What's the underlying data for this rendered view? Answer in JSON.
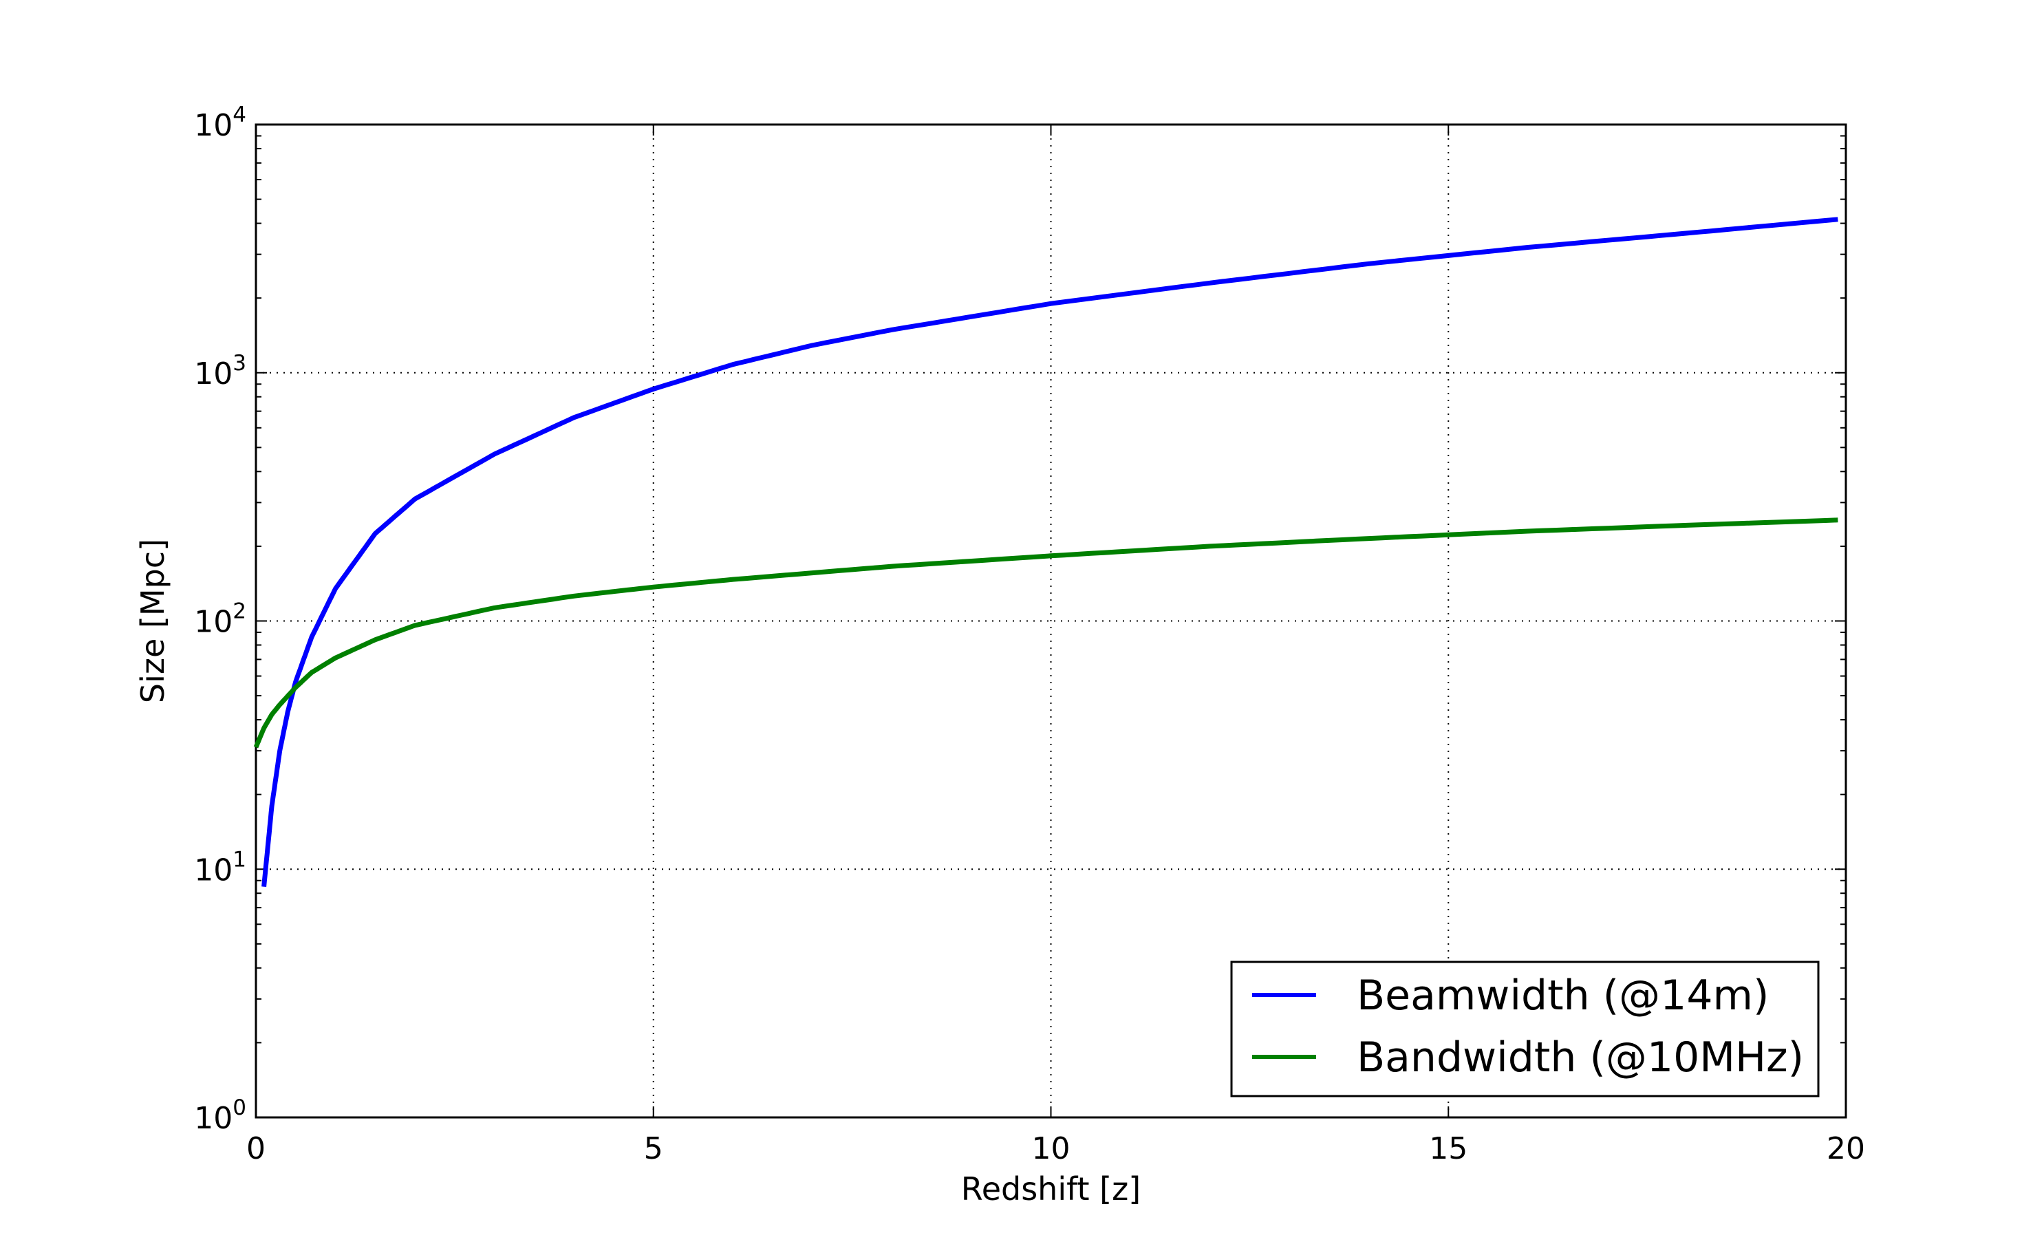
{
  "chart_data": {
    "type": "line",
    "title": "",
    "xlabel": "Redshift [z]",
    "ylabel": "Size [Mpc]",
    "xlim": [
      0,
      20
    ],
    "ylim": [
      1,
      10000
    ],
    "yscale": "log",
    "grid": true,
    "legend_position": "lower-right",
    "x_ticks": [
      "0",
      "5",
      "10",
      "15",
      "20"
    ],
    "y_ticks": [
      {
        "base": "10",
        "exp": "0"
      },
      {
        "base": "10",
        "exp": "1"
      },
      {
        "base": "10",
        "exp": "2"
      },
      {
        "base": "10",
        "exp": "3"
      },
      {
        "base": "10",
        "exp": "4"
      }
    ],
    "series": [
      {
        "name": "Beamwidth (@14m)",
        "color": "#0000ff",
        "x": [
          0.1,
          0.2,
          0.3,
          0.4,
          0.5,
          0.7,
          1.0,
          1.5,
          2,
          3,
          4,
          5,
          6,
          7,
          8,
          10,
          12,
          14,
          16,
          18,
          19.9
        ],
        "y": [
          8.5,
          18,
          30,
          43,
          57,
          86,
          135,
          225,
          310,
          470,
          660,
          860,
          1080,
          1290,
          1490,
          1900,
          2300,
          2750,
          3200,
          3650,
          4150
        ]
      },
      {
        "name": "Bandwidth (@10MHz)",
        "color": "#008000",
        "x": [
          0,
          0.1,
          0.2,
          0.3,
          0.5,
          0.7,
          1.0,
          1.5,
          2,
          3,
          4,
          5,
          6,
          8,
          10,
          12,
          14,
          16,
          18,
          19.9
        ],
        "y": [
          31,
          37,
          42,
          46,
          54,
          62,
          71,
          84,
          96,
          113,
          126,
          137,
          147,
          166,
          183,
          200,
          215,
          230,
          243,
          255
        ]
      }
    ]
  }
}
